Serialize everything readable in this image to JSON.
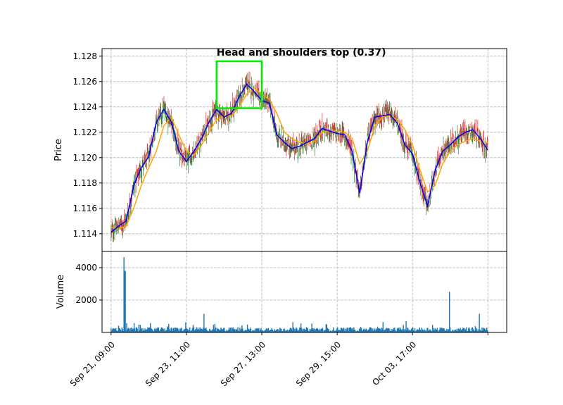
{
  "chart_data": {
    "type": "candlestick",
    "price_panel": {
      "ylabel": "Price",
      "ylim": [
        1.1126,
        1.1286
      ],
      "yticks": [
        1.114,
        1.116,
        1.118,
        1.12,
        1.122,
        1.124,
        1.126,
        1.128
      ],
      "ytick_labels": [
        "1.114",
        "1.116",
        "1.118",
        "1.120",
        "1.122",
        "1.124",
        "1.126",
        "1.128"
      ],
      "grid": true,
      "up_color": "#2e7d32",
      "down_color": "#d32f2f",
      "series": [
        {
          "color": "#0000ee",
          "x": [
            0,
            1,
            2,
            3,
            4,
            5,
            6,
            7,
            8,
            9,
            10,
            11,
            12,
            13,
            14,
            15,
            16,
            17,
            18,
            19,
            20,
            21,
            22,
            23,
            24,
            25,
            26,
            27,
            28,
            29,
            30,
            31,
            32,
            33,
            34,
            35,
            36,
            37,
            38,
            39,
            40,
            41,
            42,
            43,
            44,
            45,
            46,
            47,
            48,
            49,
            50
          ],
          "values": [
            1.1141,
            1.1146,
            1.115,
            1.1178,
            1.1192,
            1.1201,
            1.1228,
            1.1238,
            1.1228,
            1.1205,
            1.1197,
            1.1205,
            1.1215,
            1.1228,
            1.1238,
            1.1232,
            1.1235,
            1.1248,
            1.1258,
            1.1252,
            1.1245,
            1.1243,
            1.1218,
            1.1212,
            1.1207,
            1.1209,
            1.1212,
            1.1215,
            1.1223,
            1.1221,
            1.1219,
            1.1218,
            1.1205,
            1.1172,
            1.1212,
            1.1232,
            1.1233,
            1.1234,
            1.1227,
            1.121,
            1.1203,
            1.118,
            1.1162,
            1.119,
            1.1205,
            1.121,
            1.1216,
            1.122,
            1.1222,
            1.1215,
            1.1206
          ]
        },
        {
          "color": "#ffa500",
          "x": [
            0,
            1,
            2,
            3,
            4,
            5,
            6,
            7,
            8,
            9,
            10,
            11,
            12,
            13,
            14,
            15,
            16,
            17,
            18,
            19,
            20,
            21,
            22,
            23,
            24,
            25,
            26,
            27,
            28,
            29,
            30,
            31,
            32,
            33,
            34,
            35,
            36,
            37,
            38,
            39,
            40,
            41,
            42,
            43,
            44,
            45,
            46,
            47,
            48,
            49,
            50
          ],
          "values": [
            1.1145,
            1.1144,
            1.1146,
            1.116,
            1.1178,
            1.1192,
            1.1205,
            1.1225,
            1.1232,
            1.1218,
            1.1205,
            1.1202,
            1.121,
            1.122,
            1.123,
            1.1233,
            1.1233,
            1.124,
            1.125,
            1.1255,
            1.125,
            1.1246,
            1.1235,
            1.122,
            1.1215,
            1.1212,
            1.1211,
            1.1213,
            1.122,
            1.1221,
            1.1221,
            1.122,
            1.1215,
            1.1195,
            1.1205,
            1.1225,
            1.1232,
            1.1233,
            1.123,
            1.1222,
            1.121,
            1.119,
            1.1173,
            1.1178,
            1.1195,
            1.1205,
            1.121,
            1.1213,
            1.1215,
            1.1213,
            1.1212
          ]
        }
      ],
      "annotation": {
        "text": "Head and shoulders top (0.37)",
        "color": "#00ee00",
        "x_start": 14,
        "x_end": 20,
        "y_low": 1.1239,
        "y_high": 1.1276
      }
    },
    "volume_panel": {
      "ylabel": "Volume",
      "ylim": [
        0,
        5000
      ],
      "yticks": [
        2000,
        4000
      ],
      "ytick_labels": [
        "2000",
        "4000"
      ],
      "grid": true,
      "bar_color": "#1f77b4",
      "spikes": [
        {
          "x": 1.75,
          "value": 4650
        },
        {
          "x": 1.85,
          "value": 3800
        },
        {
          "x": 12.3,
          "value": 1150
        },
        {
          "x": 44.9,
          "value": 2700
        },
        {
          "x": 44.95,
          "value": 2500
        },
        {
          "x": 48.9,
          "value": 1150
        }
      ]
    },
    "x_axis": {
      "xlim": [
        -1.2,
        52.5
      ],
      "ticks": [
        0,
        10,
        20,
        30,
        40,
        50
      ],
      "tick_labels": [
        "Sep 21, 09:00",
        "Sep 23, 11:00",
        "Sep 27, 13:00",
        "Sep 29, 15:00",
        "Oct 03, 17:00",
        ""
      ]
    }
  }
}
